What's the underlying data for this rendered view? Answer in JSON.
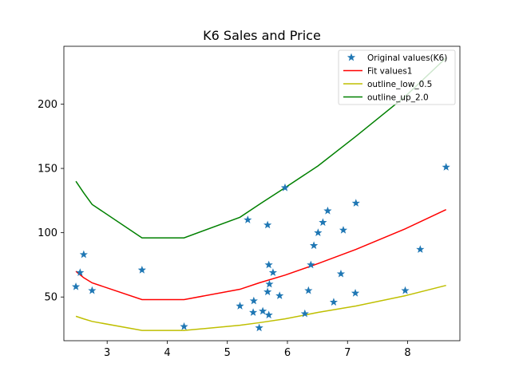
{
  "chart_data": {
    "type": "line",
    "title": "K6 Sales and Price",
    "xlabel": "",
    "ylabel": "",
    "xlim": [
      2.28,
      8.87
    ],
    "ylim": [
      16,
      245
    ],
    "xticks": [
      3,
      4,
      5,
      6,
      7,
      8
    ],
    "yticks": [
      50,
      100,
      150,
      200
    ],
    "grid": false,
    "legend_position": "top-right",
    "scatter": {
      "name": "Original values(K6)",
      "color": "#1f77b4",
      "marker": "star",
      "points": [
        [
          2.48,
          58
        ],
        [
          2.55,
          69
        ],
        [
          2.61,
          83
        ],
        [
          2.75,
          55
        ],
        [
          3.58,
          71
        ],
        [
          4.28,
          27
        ],
        [
          5.21,
          43
        ],
        [
          5.34,
          110
        ],
        [
          5.43,
          38
        ],
        [
          5.44,
          47
        ],
        [
          5.53,
          26
        ],
        [
          5.59,
          39
        ],
        [
          5.67,
          54
        ],
        [
          5.67,
          106
        ],
        [
          5.69,
          75
        ],
        [
          5.69,
          36
        ],
        [
          5.7,
          60
        ],
        [
          5.76,
          69
        ],
        [
          5.87,
          51
        ],
        [
          5.96,
          135
        ],
        [
          6.29,
          37
        ],
        [
          6.35,
          55
        ],
        [
          6.39,
          75
        ],
        [
          6.44,
          90
        ],
        [
          6.51,
          100
        ],
        [
          6.59,
          108
        ],
        [
          6.67,
          117
        ],
        [
          6.77,
          46
        ],
        [
          6.89,
          68
        ],
        [
          6.93,
          102
        ],
        [
          7.13,
          53
        ],
        [
          7.14,
          123
        ],
        [
          7.96,
          55
        ],
        [
          8.21,
          87
        ],
        [
          8.64,
          151
        ]
      ]
    },
    "lines": [
      {
        "name": "Fit values1",
        "color": "#ff0000",
        "points": [
          [
            2.48,
            70
          ],
          [
            2.61,
            65
          ],
          [
            2.75,
            61
          ],
          [
            3.58,
            48
          ],
          [
            4.28,
            48
          ],
          [
            5.21,
            56
          ],
          [
            5.53,
            61
          ],
          [
            5.96,
            67
          ],
          [
            6.51,
            76
          ],
          [
            7.14,
            87
          ],
          [
            7.96,
            103
          ],
          [
            8.64,
            118
          ]
        ]
      },
      {
        "name": "outline_low_0.5",
        "color": "#bfbf00",
        "points": [
          [
            2.48,
            35
          ],
          [
            2.61,
            33
          ],
          [
            2.75,
            31
          ],
          [
            3.58,
            24
          ],
          [
            4.28,
            24
          ],
          [
            5.21,
            28
          ],
          [
            5.53,
            30
          ],
          [
            5.96,
            33
          ],
          [
            6.51,
            38
          ],
          [
            7.14,
            43
          ],
          [
            7.96,
            51
          ],
          [
            8.64,
            59
          ]
        ]
      },
      {
        "name": "outline_up_2.0",
        "color": "#008000",
        "points": [
          [
            2.48,
            140
          ],
          [
            2.61,
            131
          ],
          [
            2.75,
            122
          ],
          [
            3.58,
            96
          ],
          [
            4.28,
            96
          ],
          [
            5.21,
            112
          ],
          [
            5.53,
            122
          ],
          [
            5.96,
            135
          ],
          [
            6.51,
            152
          ],
          [
            7.14,
            175
          ],
          [
            7.96,
            206
          ],
          [
            8.64,
            236
          ]
        ]
      }
    ],
    "legend": [
      "Original values(K6)",
      "Fit values1",
      "outline_low_0.5",
      "outline_up_2.0"
    ]
  }
}
